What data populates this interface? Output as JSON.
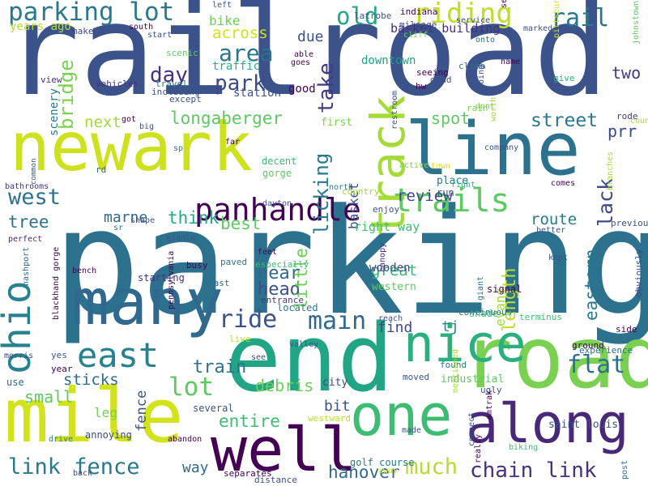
{
  "words": [
    {
      "text": "railroad",
      "color": "#3b528b",
      "vertical": false
    },
    {
      "text": "parking",
      "color": "#2c728e",
      "vertical": false
    },
    {
      "text": "end",
      "color": "#21a585",
      "vertical": false
    },
    {
      "text": "newark",
      "color": "#cde11d",
      "vertical": false
    },
    {
      "text": "line",
      "color": "#2c728e",
      "vertical": false
    },
    {
      "text": "road",
      "color": "#7ad151",
      "vertical": false
    },
    {
      "text": "many",
      "color": "#31688e",
      "vertical": false
    },
    {
      "text": "mile",
      "color": "#d2e21b",
      "vertical": false
    },
    {
      "text": "well",
      "color": "#440154",
      "vertical": false
    },
    {
      "text": "one",
      "color": "#3fbc73",
      "vertical": false
    },
    {
      "text": "along",
      "color": "#482878",
      "vertical": false
    },
    {
      "text": "nice",
      "color": "#2ab07f",
      "vertical": false
    },
    {
      "text": "track",
      "color": "#a5db36",
      "vertical": true
    },
    {
      "text": "panhandle",
      "color": "#440154",
      "vertical": false
    },
    {
      "text": "ohio",
      "color": "#26828e",
      "vertical": true
    },
    {
      "text": "east",
      "color": "#26828e",
      "vertical": false
    },
    {
      "text": "trails",
      "color": "#5ec962",
      "vertical": false
    },
    {
      "text": "parking lot",
      "color": "#2a788e",
      "vertical": false
    },
    {
      "text": "riding",
      "color": "#bddf26",
      "vertical": false
    },
    {
      "text": "old",
      "color": "#22a884",
      "vertical": false
    },
    {
      "text": "rail",
      "color": "#2a788e",
      "vertical": false
    },
    {
      "text": "area",
      "color": "#2c728e",
      "vertical": false
    },
    {
      "text": "day",
      "color": "#46327e",
      "vertical": false
    },
    {
      "text": "park",
      "color": "#3e4989",
      "vertical": false
    },
    {
      "text": "across",
      "color": "#cde11d",
      "vertical": false
    },
    {
      "text": "take",
      "color": "#443a83",
      "vertical": true
    },
    {
      "text": "bridge",
      "color": "#7ad151",
      "vertical": true
    },
    {
      "text": "west",
      "color": "#2c728e",
      "vertical": false
    },
    {
      "text": "lack",
      "color": "#3e4989",
      "vertical": true
    },
    {
      "text": "street",
      "color": "#2a788e",
      "vertical": false
    },
    {
      "text": "ride",
      "color": "#3b528b",
      "vertical": false
    },
    {
      "text": "main",
      "color": "#31688e",
      "vertical": false
    },
    {
      "text": "lot",
      "color": "#5ec962",
      "vertical": false
    },
    {
      "text": "flat",
      "color": "#2c728e",
      "vertical": false
    },
    {
      "text": "mile",
      "color": "#d8e219",
      "vertical": false
    },
    {
      "text": "link fence",
      "color": "#2a788e",
      "vertical": false
    },
    {
      "text": "much",
      "color": "#b5de2b",
      "vertical": false
    },
    {
      "text": "chain link",
      "color": "#46327e",
      "vertical": false
    },
    {
      "text": "longaberger",
      "color": "#5ec962",
      "vertical": false
    },
    {
      "text": "near",
      "color": "#31688e",
      "vertical": false
    },
    {
      "text": "head",
      "color": "#3b528b",
      "vertical": false
    },
    {
      "text": "entire",
      "color": "#3fbc73",
      "vertical": false
    },
    {
      "text": "hanover",
      "color": "#31688e",
      "vertical": false
    },
    {
      "text": "tree",
      "color": "#2c728e",
      "vertical": false
    },
    {
      "text": "licking",
      "color": "#2a788e",
      "vertical": true
    },
    {
      "text": "length",
      "color": "#bddf26",
      "vertical": true
    },
    {
      "text": "review",
      "color": "#3e4989",
      "vertical": false
    },
    {
      "text": "great",
      "color": "#35b779",
      "vertical": false
    },
    {
      "text": "route",
      "color": "#2a788e",
      "vertical": false
    },
    {
      "text": "eastern",
      "color": "#2a788e",
      "vertical": true
    },
    {
      "text": "think",
      "color": "#22a884",
      "vertical": false
    },
    {
      "text": "best",
      "color": "#5ec962",
      "vertical": false
    },
    {
      "text": "little",
      "color": "#6ece58",
      "vertical": true
    },
    {
      "text": "spot",
      "color": "#5ec962",
      "vertical": false
    },
    {
      "text": "next",
      "color": "#a0da39",
      "vertical": false
    },
    {
      "text": "prr",
      "color": "#3e4989",
      "vertical": false
    },
    {
      "text": "two",
      "color": "#443a83",
      "vertical": false
    },
    {
      "text": "train",
      "color": "#2c728e",
      "vertical": false
    },
    {
      "text": "debris",
      "color": "#6ece58",
      "vertical": false
    },
    {
      "text": "sticks",
      "color": "#31688e",
      "vertical": false
    },
    {
      "text": "fence",
      "color": "#3b528b",
      "vertical": true
    },
    {
      "text": "small",
      "color": "#5ec962",
      "vertical": false
    },
    {
      "text": "leg",
      "color": "#75d054",
      "vertical": false
    },
    {
      "text": "bit",
      "color": "#3b528b",
      "vertical": false
    },
    {
      "text": "way",
      "color": "#31688e",
      "vertical": false
    },
    {
      "text": "find",
      "color": "#3e4989",
      "vertical": false
    },
    {
      "text": "due",
      "color": "#3b528b",
      "vertical": false
    },
    {
      "text": "basket",
      "color": "#3b528b",
      "vertical": true
    },
    {
      "text": "marne",
      "color": "#31688e",
      "vertical": false
    },
    {
      "text": "tj",
      "color": "#23898e",
      "vertical": false
    },
    {
      "text": "evans",
      "color": "#a0da39",
      "vertical": true
    },
    {
      "text": "scenery",
      "color": "#2a788e",
      "vertical": true
    },
    {
      "text": "bike",
      "color": "#6ece58",
      "vertical": false
    },
    {
      "text": "basket building",
      "color": "#46327e",
      "vertical": false
    },
    {
      "text": "traffic",
      "color": "#2ab07f",
      "vertical": false
    },
    {
      "text": "downtown",
      "color": "#1fa187",
      "vertical": false
    },
    {
      "text": "years ago",
      "color": "#b5de2b",
      "vertical": false
    },
    {
      "text": "right way",
      "color": "#3fbc73",
      "vertical": false
    },
    {
      "text": "wooden",
      "color": "#3e4989",
      "vertical": false
    },
    {
      "text": "western",
      "color": "#5ec962",
      "vertical": false
    },
    {
      "text": "good",
      "color": "#440154",
      "vertical": false
    },
    {
      "text": "station",
      "color": "#3b528b",
      "vertical": false
    },
    {
      "text": "mileage",
      "color": "#3e4989",
      "vertical": false
    },
    {
      "text": "latrobe",
      "color": "#3b528b",
      "vertical": false
    },
    {
      "text": "indiana",
      "color": "#440154",
      "vertical": false
    },
    {
      "text": "dead",
      "color": "#3b528b",
      "vertical": false
    },
    {
      "text": "climb",
      "color": "#2c728e",
      "vertical": false
    },
    {
      "text": "seeing",
      "color": "#440154",
      "vertical": false
    },
    {
      "text": "cliff",
      "color": "#6ece58",
      "vertical": false
    },
    {
      "text": "first",
      "color": "#7ad151",
      "vertical": false
    },
    {
      "text": "rain",
      "color": "#7ad151",
      "vertical": false
    },
    {
      "text": "gorge",
      "color": "#5ec962",
      "vertical": false
    },
    {
      "text": "decent",
      "color": "#3fbc73",
      "vertical": false
    },
    {
      "text": "rode",
      "color": "#443a83",
      "vertical": false
    },
    {
      "text": "shade",
      "color": "#3fbc73",
      "vertical": false
    },
    {
      "text": "found",
      "color": "#2a788e",
      "vertical": false
    },
    {
      "text": "industrial",
      "color": "#5ec962",
      "vertical": false
    },
    {
      "text": "ugly",
      "color": "#3b528b",
      "vertical": false
    },
    {
      "text": "saint louis",
      "color": "#3b528b",
      "vertical": false
    },
    {
      "text": "city",
      "color": "#3e4989",
      "vertical": false
    },
    {
      "text": "golf course",
      "color": "#2a788e",
      "vertical": false
    },
    {
      "text": "several",
      "color": "#3b528b",
      "vertical": false
    },
    {
      "text": "annoying",
      "color": "#3e4989",
      "vertical": false
    },
    {
      "text": "abandon",
      "color": "#440154",
      "vertical": false
    },
    {
      "text": "separates",
      "color": "#440154",
      "vertical": false
    },
    {
      "text": "distance",
      "color": "#3b528b",
      "vertical": false
    },
    {
      "text": "westward",
      "color": "#bddf26",
      "vertical": false
    },
    {
      "text": "signal",
      "color": "#440154",
      "vertical": false
    },
    {
      "text": "terminus",
      "color": "#3fbc73",
      "vertical": false
    },
    {
      "text": "experience",
      "color": "#2c728e",
      "vertical": false
    },
    {
      "text": "continuous",
      "color": "#2a788e",
      "vertical": false
    },
    {
      "text": "side",
      "color": "#440154",
      "vertical": false
    },
    {
      "text": "obviously",
      "color": "#3e4989",
      "vertical": true
    },
    {
      "text": "previous",
      "color": "#3b528b",
      "vertical": false
    },
    {
      "text": "better",
      "color": "#3b528b",
      "vertical": false
    },
    {
      "text": "kept",
      "color": "#3b528b",
      "vertical": false
    },
    {
      "text": "canopy",
      "color": "#46327e",
      "vertical": true
    },
    {
      "text": "enjoy",
      "color": "#3b528b",
      "vertical": false
    },
    {
      "text": "country",
      "color": "#a0da39",
      "vertical": false
    },
    {
      "text": "dayton",
      "color": "#3b528b",
      "vertical": false
    },
    {
      "text": "place",
      "color": "#2a788e",
      "vertical": false
    },
    {
      "text": "run",
      "color": "#3e4989",
      "vertical": false
    },
    {
      "text": "active",
      "color": "#7ad151",
      "vertical": false
    },
    {
      "text": "town",
      "color": "#d8e219",
      "vertical": false
    },
    {
      "text": "especially",
      "color": "#3fbc73",
      "vertical": false
    },
    {
      "text": "feet",
      "color": "#440154",
      "vertical": false
    },
    {
      "text": "entrance",
      "color": "#443a83",
      "vertical": false
    },
    {
      "text": "located",
      "color": "#2a788e",
      "vertical": false
    },
    {
      "text": "starting",
      "color": "#46327e",
      "vertical": false
    },
    {
      "text": "busy",
      "color": "#440154",
      "vertical": false
    },
    {
      "text": "paved",
      "color": "#2a788e",
      "vertical": false
    },
    {
      "text": "last",
      "color": "#31688e",
      "vertical": false
    },
    {
      "text": "pennsylvania",
      "color": "#440154",
      "vertical": true
    },
    {
      "text": "bench",
      "color": "#440154",
      "vertical": false
    },
    {
      "text": "blackhand gorge",
      "color": "#440154",
      "vertical": true
    },
    {
      "text": "perfect",
      "color": "#482878",
      "vertical": false
    },
    {
      "text": "bathrooms",
      "color": "#46327e",
      "vertical": false
    },
    {
      "text": "morris",
      "color": "#3e4989",
      "vertical": false
    },
    {
      "text": "common",
      "color": "#3b528b",
      "vertical": true
    },
    {
      "text": "nashport",
      "color": "#31688e",
      "vertical": true
    },
    {
      "text": "view",
      "color": "#46327e",
      "vertical": false
    },
    {
      "text": "vehicles",
      "color": "#46327e",
      "vertical": false
    },
    {
      "text": "travel",
      "color": "#2c728e",
      "vertical": false
    },
    {
      "text": "including",
      "color": "#3b528b",
      "vertical": false
    },
    {
      "text": "except",
      "color": "#3b528b",
      "vertical": false
    },
    {
      "text": "got",
      "color": "#440154",
      "vertical": false
    },
    {
      "text": "big",
      "color": "#3b528b",
      "vertical": false
    },
    {
      "text": "sp",
      "color": "#2c728e",
      "vertical": false
    },
    {
      "text": "rd",
      "color": "#31688e",
      "vertical": false
    },
    {
      "text": "sr",
      "color": "#2c728e",
      "vertical": false
    },
    {
      "text": "shape",
      "color": "#3b528b",
      "vertical": false
    },
    {
      "text": "far",
      "color": "#440154",
      "vertical": false
    },
    {
      "text": "middle",
      "color": "#3b528b",
      "vertical": false
    },
    {
      "text": "left",
      "color": "#3b528b",
      "vertical": false
    },
    {
      "text": "south",
      "color": "#440154",
      "vertical": false
    },
    {
      "text": "make",
      "color": "#3e4989",
      "vertical": false
    },
    {
      "text": "start",
      "color": "#3b528b",
      "vertical": false
    },
    {
      "text": "scenic",
      "color": "#5ec962",
      "vertical": false
    },
    {
      "text": "able",
      "color": "#440154",
      "vertical": false
    },
    {
      "text": "goes",
      "color": "#440154",
      "vertical": false
    },
    {
      "text": "service",
      "color": "#3e4989",
      "vertical": false
    },
    {
      "text": "hw",
      "color": "#440154",
      "vertical": false
    },
    {
      "text": "restroom",
      "color": "#3b528b",
      "vertical": true
    },
    {
      "text": "dont",
      "color": "#7ad151",
      "vertical": false
    },
    {
      "text": "north",
      "color": "#2a788e",
      "vertical": false
    },
    {
      "text": "separated",
      "color": "#440154",
      "vertical": true
    },
    {
      "text": "marked",
      "color": "#3b528b",
      "vertical": false
    },
    {
      "text": "onto",
      "color": "#2c728e",
      "vertical": false
    },
    {
      "text": "name",
      "color": "#440154",
      "vertical": false
    },
    {
      "text": "give",
      "color": "#2ab07f",
      "vertical": false
    },
    {
      "text": "going",
      "color": "#3b528b",
      "vertical": true
    },
    {
      "text": "pittsburgh",
      "color": "#d2e21b",
      "vertical": true
    },
    {
      "text": "county",
      "color": "#a5db36",
      "vertical": false
    },
    {
      "text": "johnstown",
      "color": "#5ec962",
      "vertical": true
    },
    {
      "text": "worth",
      "color": "#a5db36",
      "vertical": true
    },
    {
      "text": "company",
      "color": "#3b528b",
      "vertical": false
    },
    {
      "text": "comes",
      "color": "#440154",
      "vertical": false
    },
    {
      "text": "branches",
      "color": "#a5db36",
      "vertical": true
    },
    {
      "text": "giant",
      "color": "#2c728e",
      "vertical": true
    },
    {
      "text": "conrail",
      "color": "#2c728e",
      "vertical": true
    },
    {
      "text": "ground",
      "color": "#440154",
      "vertical": false
    },
    {
      "text": "reach",
      "color": "#3b528b",
      "vertical": false
    },
    {
      "text": "valley",
      "color": "#3b528b",
      "vertical": false
    },
    {
      "text": "live",
      "color": "#bddf26",
      "vertical": false
    },
    {
      "text": "see",
      "color": "#3e4989",
      "vertical": false
    },
    {
      "text": "yes",
      "color": "#3b528b",
      "vertical": false
    },
    {
      "text": "year",
      "color": "#440154",
      "vertical": false
    },
    {
      "text": "use",
      "color": "#31688e",
      "vertical": false
    },
    {
      "text": "drive",
      "color": "#2a788e",
      "vertical": false
    },
    {
      "text": "back",
      "color": "#3e4989",
      "vertical": false
    },
    {
      "text": "away",
      "color": "#d8e219",
      "vertical": false
    },
    {
      "text": "made",
      "color": "#3b528b",
      "vertical": false
    },
    {
      "text": "mentioned",
      "color": "#a5db36",
      "vertical": true
    },
    {
      "text": "really",
      "color": "#440154",
      "vertical": true
    },
    {
      "text": "connect",
      "color": "#3b528b",
      "vertical": true
    },
    {
      "text": "amtrak",
      "color": "#440154",
      "vertical": true
    },
    {
      "text": "biking",
      "color": "#3fbc73",
      "vertical": false
    },
    {
      "text": "post",
      "color": "#2c728e",
      "vertical": true
    },
    {
      "text": "moved",
      "color": "#3b528b",
      "vertical": false
    },
    {
      "text": "right",
      "color": "#2ab07f",
      "vertical": false
    },
    {
      "text": "s",
      "color": "#3b528b",
      "vertical": false
    }
  ]
}
